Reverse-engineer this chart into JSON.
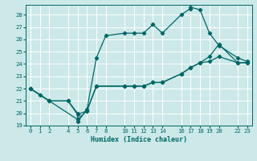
{
  "xlabel": "Humidex (Indice chaleur)",
  "bg_color": "#cce8e8",
  "grid_color": "#ffffff",
  "line_color": "#006666",
  "line1_x": [
    0,
    1,
    2,
    4,
    5,
    5,
    6,
    7,
    8,
    10,
    11,
    12,
    13,
    14,
    16,
    17,
    17,
    18,
    19,
    20,
    22,
    23
  ],
  "line1_y": [
    22,
    21.5,
    21,
    21,
    20,
    19.3,
    20.3,
    24.5,
    26.3,
    26.5,
    26.5,
    26.5,
    27.2,
    26.5,
    28.0,
    28.5,
    28.6,
    28.4,
    26.5,
    25.5,
    24.5,
    24.2
  ],
  "line2_x": [
    0,
    2,
    4,
    5,
    6,
    7,
    10,
    11,
    12,
    13,
    14,
    16,
    17,
    18,
    19,
    20,
    22,
    23
  ],
  "line2_y": [
    22,
    21,
    21,
    19.9,
    20.2,
    22.2,
    22.2,
    22.2,
    22.2,
    22.5,
    22.5,
    23.2,
    23.7,
    24.1,
    24.2,
    24.6,
    24.1,
    24.1
  ],
  "line3_x": [
    0,
    2,
    5,
    6,
    7,
    10,
    11,
    12,
    13,
    14,
    16,
    17,
    18,
    19,
    20,
    22,
    23
  ],
  "line3_y": [
    22,
    21,
    19.5,
    20.2,
    22.2,
    22.2,
    22.2,
    22.2,
    22.5,
    22.5,
    23.2,
    23.7,
    24.1,
    24.6,
    25.6,
    24.1,
    24.1
  ],
  "xlim": [
    -0.5,
    23.5
  ],
  "ylim": [
    19,
    28.8
  ],
  "xticks": [
    0,
    1,
    2,
    4,
    5,
    6,
    7,
    8,
    10,
    11,
    12,
    13,
    14,
    16,
    17,
    18,
    19,
    20,
    22,
    23
  ],
  "yticks": [
    19,
    20,
    21,
    22,
    23,
    24,
    25,
    26,
    27,
    28
  ],
  "marker": "D",
  "markersize": 2.2,
  "linewidth": 0.9,
  "tick_labelsize": 5.2,
  "xlabel_fontsize": 6.0
}
